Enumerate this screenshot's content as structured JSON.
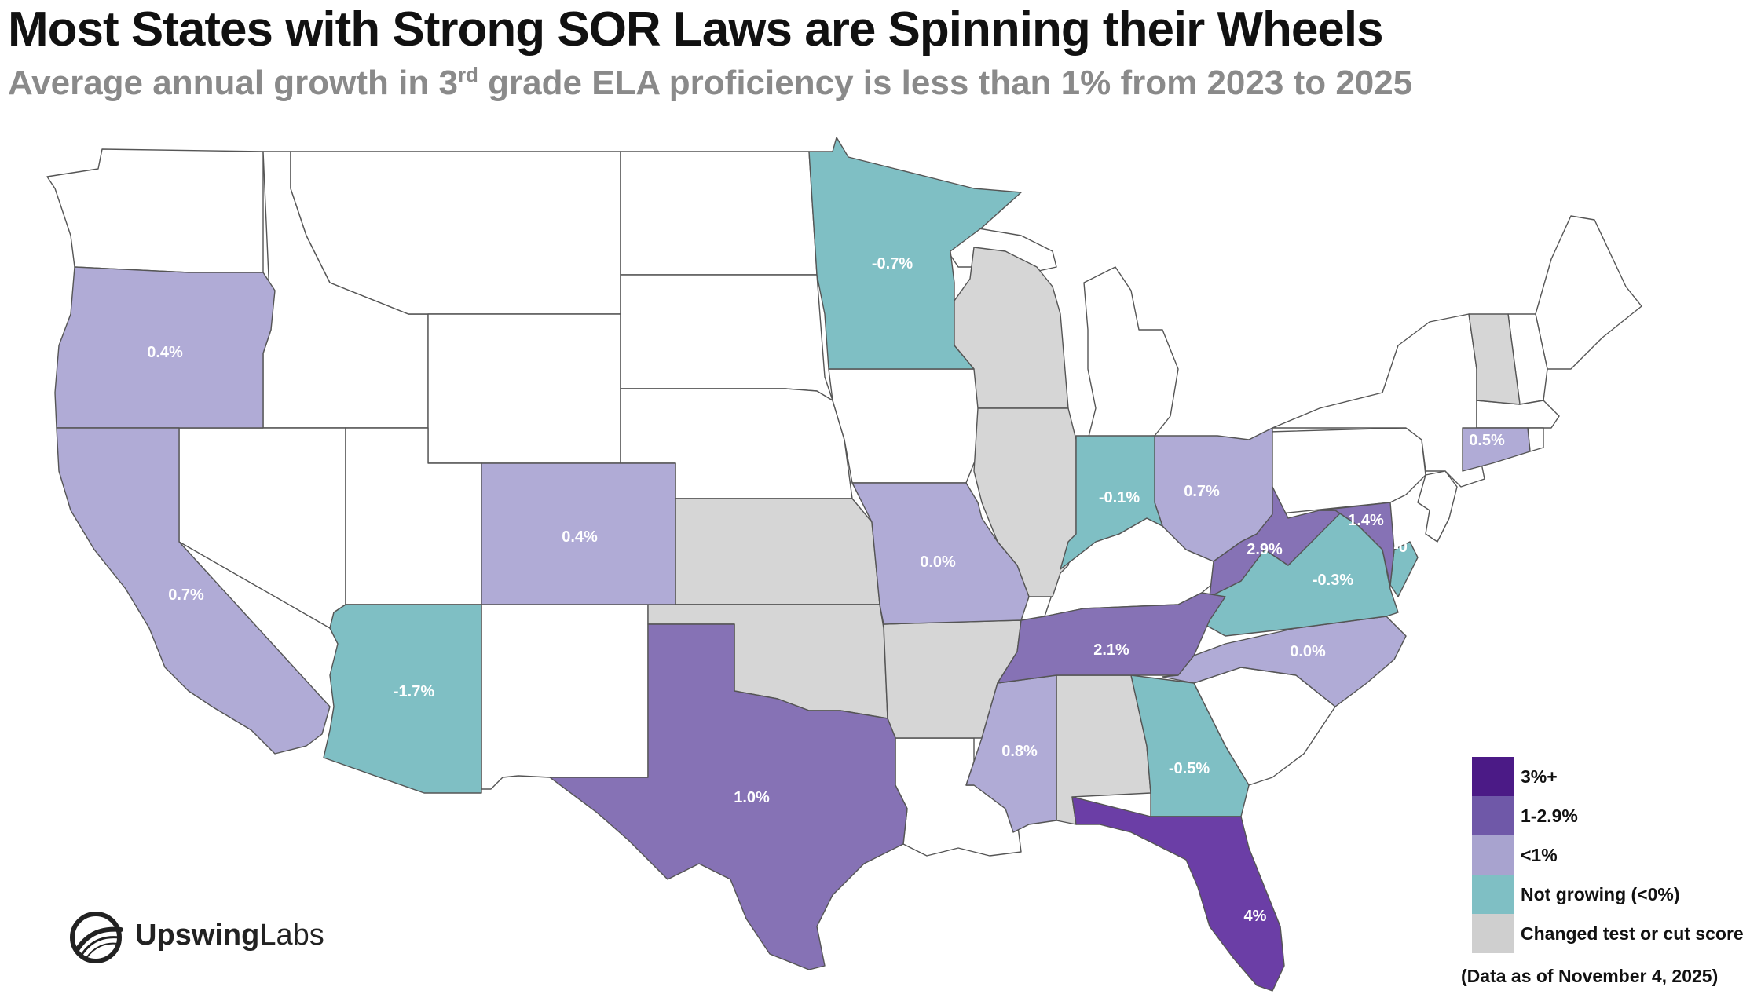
{
  "header": {
    "title": "Most States with Strong SOR Laws are Spinning their Wheels",
    "subtitle_pre": "Average annual growth in 3",
    "subtitle_sup": "rd",
    "subtitle_post": " grade ELA proficiency is less than 1% from 2023 to 2025"
  },
  "colors": {
    "cat_3plus": "#4b1a86",
    "cat_1_2_9": "#8672b5",
    "cat_lt1": "#b0abd6",
    "cat_not_growing": "#7fbfc4",
    "cat_changed": "#d6d6d6",
    "no_data": "#ffffff",
    "florida": "#6b3ea6",
    "state_border": "#555555"
  },
  "map": {
    "states": [
      {
        "state": "Oregon",
        "category": "<1%",
        "label": "0.4%"
      },
      {
        "state": "California",
        "category": "<1%",
        "label": "0.7%"
      },
      {
        "state": "Arizona",
        "category": "Not growing (<0%)",
        "label": "-1.7%"
      },
      {
        "state": "Colorado",
        "category": "<1%",
        "label": "0.4%"
      },
      {
        "state": "Texas",
        "category": "1-2.9%",
        "label": "1.0%"
      },
      {
        "state": "Minnesota",
        "category": "Not growing (<0%)",
        "label": "-0.7%"
      },
      {
        "state": "Missouri",
        "category": "<1%",
        "label": "0.0%"
      },
      {
        "state": "Indiana",
        "category": "Not growing (<0%)",
        "label": "-0.1%"
      },
      {
        "state": "Ohio",
        "category": "<1%",
        "label": "0.7%"
      },
      {
        "state": "West Virginia",
        "category": "1-2.9%",
        "label": "2.9%"
      },
      {
        "state": "Maryland",
        "category": "1-2.9%",
        "label": "1.4%"
      },
      {
        "state": "Delaware",
        "category": "Not growing (<0%)",
        "label": "-0"
      },
      {
        "state": "Virginia",
        "category": "Not growing (<0%)",
        "label": "-0.3%"
      },
      {
        "state": "Tennessee",
        "category": "1-2.9%",
        "label": "2.1%"
      },
      {
        "state": "North Carolina",
        "category": "<1%",
        "label": "0.0%"
      },
      {
        "state": "Mississippi",
        "category": "<1%",
        "label": "0.8%"
      },
      {
        "state": "Georgia",
        "category": "Not growing (<0%)",
        "label": "-0.5%"
      },
      {
        "state": "Florida",
        "category": "3%+",
        "label": "4%"
      },
      {
        "state": "Connecticut",
        "category": "<1%",
        "label": "0.5%"
      },
      {
        "state": "Wisconsin",
        "category": "Changed test or cut score",
        "label": ""
      },
      {
        "state": "Illinois",
        "category": "Changed test or cut score",
        "label": ""
      },
      {
        "state": "Kansas",
        "category": "Changed test or cut score",
        "label": ""
      },
      {
        "state": "Oklahoma",
        "category": "Changed test or cut score",
        "label": ""
      },
      {
        "state": "Arkansas",
        "category": "Changed test or cut score",
        "label": ""
      },
      {
        "state": "Alabama",
        "category": "Changed test or cut score",
        "label": ""
      },
      {
        "state": "Vermont",
        "category": "Changed test or cut score",
        "label": ""
      }
    ]
  },
  "legend": {
    "items": [
      {
        "label": "3%+",
        "color": "#4b1a86"
      },
      {
        "label": "1-2.9%",
        "color": "#6f58a8"
      },
      {
        "label": "<1%",
        "color": "#a8a3cf"
      },
      {
        "label": "Not growing (<0%)",
        "color": "#7fbfc4"
      },
      {
        "label": "Changed test or cut score",
        "color": "#cfcfcf"
      }
    ],
    "note": "(Data as of November 4, 2025)"
  },
  "logo": {
    "brand_bold": "Upswing",
    "brand_light": "Labs"
  }
}
